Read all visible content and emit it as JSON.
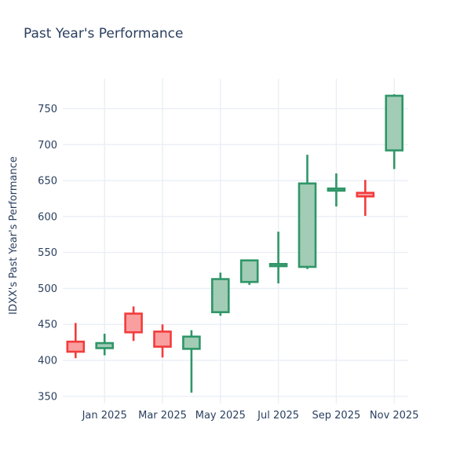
{
  "chart_data": {
    "type": "candlestick",
    "title": "Past Year's Performance",
    "ylabel": "IDXX's Past Year's Performance",
    "xlabel": "",
    "x_tick_labels": [
      "Jan 2025",
      "Mar 2025",
      "May 2025",
      "Jul 2025",
      "Sep 2025",
      "Nov 2025"
    ],
    "y_ticks": [
      350,
      400,
      450,
      500,
      550,
      600,
      650,
      700,
      750
    ],
    "ylim": [
      340,
      792
    ],
    "grid": true,
    "legend": false,
    "categories": [
      "Dec 2024",
      "Jan 2025",
      "Feb 2025",
      "Mar 2025",
      "Apr 2025",
      "May 2025",
      "Jun 2025",
      "Jul 2025",
      "Aug 2025",
      "Sep 2025",
      "Oct 2025",
      "Nov 2025"
    ],
    "series": [
      {
        "name": "IDXX monthly OHLC",
        "data": [
          {
            "month": "Dec 2024",
            "open": 426,
            "high": 452,
            "low": 403,
            "close": 412
          },
          {
            "month": "Jan 2025",
            "open": 417,
            "high": 437,
            "low": 407,
            "close": 424
          },
          {
            "month": "Feb 2025",
            "open": 465,
            "high": 475,
            "low": 427,
            "close": 439
          },
          {
            "month": "Mar 2025",
            "open": 440,
            "high": 450,
            "low": 404,
            "close": 419
          },
          {
            "month": "Apr 2025",
            "open": 416,
            "high": 442,
            "low": 355,
            "close": 433
          },
          {
            "month": "May 2025",
            "open": 467,
            "high": 522,
            "low": 462,
            "close": 513
          },
          {
            "month": "Jun 2025",
            "open": 509,
            "high": 540,
            "low": 505,
            "close": 539
          },
          {
            "month": "Jul 2025",
            "open": 531,
            "high": 579,
            "low": 507,
            "close": 534
          },
          {
            "month": "Aug 2025",
            "open": 530,
            "high": 686,
            "low": 527,
            "close": 646
          },
          {
            "month": "Sep 2025",
            "open": 636,
            "high": 660,
            "low": 614,
            "close": 639
          },
          {
            "month": "Oct 2025",
            "open": 633,
            "high": 651,
            "low": 601,
            "close": 628
          },
          {
            "month": "Nov 2025",
            "open": 692,
            "high": 770,
            "low": 666,
            "close": 768
          }
        ]
      }
    ],
    "colors": {
      "increasing_line": "#2f9668",
      "increasing_fill": "#a2ccb5",
      "decreasing_line": "#f23c3c",
      "decreasing_fill": "#fa9f9f",
      "grid": "#e9eef6",
      "text": "#2a3f5f",
      "background": "#ffffff"
    }
  }
}
